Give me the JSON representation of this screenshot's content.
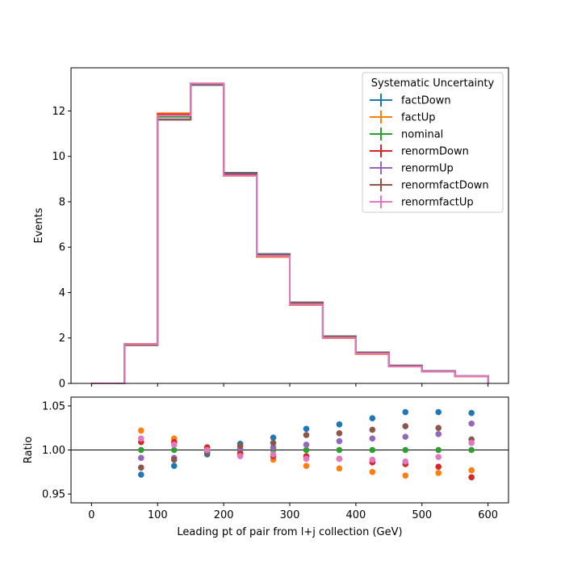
{
  "chart_data": [
    {
      "type": "line",
      "drawstyle": "step",
      "ylabel": "Events",
      "xlim": [
        -31,
        631
      ],
      "ylim": [
        0,
        13.9
      ],
      "yticks": [
        0,
        2,
        4,
        6,
        8,
        10,
        12
      ],
      "bin_edges": [
        0,
        50,
        100,
        150,
        200,
        250,
        300,
        350,
        400,
        450,
        500,
        550,
        600
      ],
      "legend": {
        "title": "Systematic Uncertainty",
        "placement": "top-right"
      },
      "series": [
        {
          "name": "factDown",
          "color": "#1f77b4",
          "values": [
            0,
            1.72,
            11.62,
            13.14,
            9.28,
            5.7,
            3.57,
            2.08,
            1.37,
            0.79,
            0.55,
            0.33
          ]
        },
        {
          "name": "factUp",
          "color": "#ff7f0e",
          "values": [
            0,
            1.74,
            11.9,
            13.21,
            9.14,
            5.57,
            3.45,
            1.99,
            1.29,
            0.74,
            0.52,
            0.31
          ]
        },
        {
          "name": "nominal",
          "color": "#2ca02c",
          "values": [
            0,
            1.71,
            11.74,
            13.19,
            9.22,
            5.64,
            3.51,
            2.03,
            1.33,
            0.76,
            0.53,
            0.32
          ]
        },
        {
          "name": "renormDown",
          "color": "#d62728",
          "values": [
            0,
            1.73,
            11.85,
            13.21,
            9.19,
            5.6,
            3.47,
            2.01,
            1.31,
            0.75,
            0.52,
            0.31
          ]
        },
        {
          "name": "renormUp",
          "color": "#9467bd",
          "values": [
            0,
            1.7,
            11.64,
            13.17,
            9.24,
            5.67,
            3.54,
            2.05,
            1.35,
            0.77,
            0.54,
            0.33
          ]
        },
        {
          "name": "renormfactDown",
          "color": "#8c564b",
          "values": [
            0,
            1.68,
            11.61,
            13.16,
            9.25,
            5.68,
            3.57,
            2.07,
            1.36,
            0.78,
            0.54,
            0.32
          ]
        },
        {
          "name": "renormfactUp",
          "color": "#e377c2",
          "values": [
            0,
            1.73,
            11.8,
            13.21,
            9.15,
            5.61,
            3.47,
            2.01,
            1.31,
            0.74,
            0.52,
            0.32
          ]
        }
      ]
    },
    {
      "type": "scatter",
      "xlabel": "Leading pt of pair from l+j collection (GeV)",
      "ylabel": "Ratio",
      "xlim": [
        -31,
        631
      ],
      "ylim": [
        0.94,
        1.06
      ],
      "yticks": [
        0.95,
        1.0,
        1.05
      ],
      "ytick_labels": [
        "0.95",
        "1.00",
        "1.05"
      ],
      "xticks": [
        0,
        100,
        200,
        300,
        400,
        500,
        600
      ],
      "xtick_labels": [
        "0",
        "100",
        "200",
        "300",
        "400",
        "500",
        "600"
      ],
      "reference_line": 1.0,
      "x": [
        75,
        125,
        175,
        225,
        275,
        325,
        375,
        425,
        475,
        525,
        575
      ],
      "series": [
        {
          "name": "factDown",
          "color": "#1f77b4",
          "values": [
            0.972,
            0.982,
            0.995,
            1.007,
            1.014,
            1.024,
            1.029,
            1.036,
            1.043,
            1.043,
            1.042
          ]
        },
        {
          "name": "factUp",
          "color": "#ff7f0e",
          "values": [
            1.022,
            1.013,
            1.002,
            0.994,
            0.989,
            0.982,
            0.979,
            0.975,
            0.971,
            0.974,
            0.977
          ]
        },
        {
          "name": "nominal",
          "color": "#2ca02c",
          "values": [
            1.0,
            1.0,
            1.0,
            1.0,
            1.0,
            1.0,
            1.0,
            1.0,
            1.0,
            1.0,
            1.0
          ]
        },
        {
          "name": "renormDown",
          "color": "#d62728",
          "values": [
            1.009,
            1.009,
            1.003,
            0.996,
            0.993,
            0.993,
            0.99,
            0.986,
            0.984,
            0.981,
            0.969
          ]
        },
        {
          "name": "renormUp",
          "color": "#9467bd",
          "values": [
            0.991,
            0.991,
            0.998,
            1.002,
            1.003,
            1.006,
            1.01,
            1.013,
            1.015,
            1.018,
            1.03
          ]
        },
        {
          "name": "renormfactDown",
          "color": "#8c564b",
          "values": [
            0.98,
            0.989,
            0.997,
            1.005,
            1.008,
            1.017,
            1.019,
            1.023,
            1.027,
            1.025,
            1.012
          ]
        },
        {
          "name": "renormfactUp",
          "color": "#e377c2",
          "values": [
            1.013,
            1.006,
            1.0,
            0.993,
            0.995,
            0.99,
            0.99,
            0.989,
            0.987,
            0.992,
            1.008
          ]
        }
      ]
    }
  ]
}
